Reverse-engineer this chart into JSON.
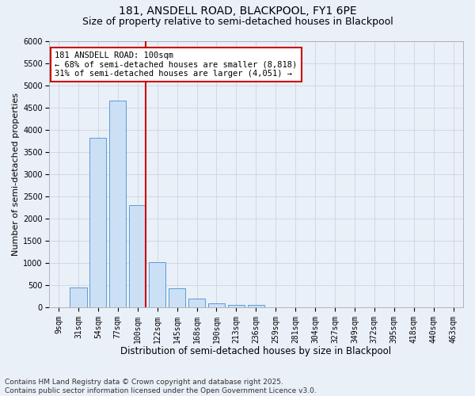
{
  "title1": "181, ANSDELL ROAD, BLACKPOOL, FY1 6PE",
  "title2": "Size of property relative to semi-detached houses in Blackpool",
  "xlabel": "Distribution of semi-detached houses by size in Blackpool",
  "ylabel": "Number of semi-detached properties",
  "categories": [
    "9sqm",
    "31sqm",
    "54sqm",
    "77sqm",
    "100sqm",
    "122sqm",
    "145sqm",
    "168sqm",
    "190sqm",
    "213sqm",
    "236sqm",
    "259sqm",
    "281sqm",
    "304sqm",
    "327sqm",
    "349sqm",
    "372sqm",
    "395sqm",
    "418sqm",
    "440sqm",
    "463sqm"
  ],
  "values": [
    0,
    450,
    3820,
    4660,
    2290,
    1010,
    420,
    195,
    80,
    55,
    55,
    0,
    0,
    0,
    0,
    0,
    0,
    0,
    0,
    0,
    0
  ],
  "bar_color": "#cce0f5",
  "bar_edge_color": "#5b9bd5",
  "highlight_bar_index": 4,
  "highlight_line_color": "#cc0000",
  "annotation_text": "181 ANSDELL ROAD: 100sqm\n← 68% of semi-detached houses are smaller (8,818)\n31% of semi-detached houses are larger (4,051) →",
  "annotation_box_color": "#ffffff",
  "annotation_box_edge_color": "#cc0000",
  "ylim": [
    0,
    6000
  ],
  "yticks": [
    0,
    500,
    1000,
    1500,
    2000,
    2500,
    3000,
    3500,
    4000,
    4500,
    5000,
    5500,
    6000
  ],
  "grid_color": "#d0d8e8",
  "bg_color": "#eaf0f8",
  "footnote": "Contains HM Land Registry data © Crown copyright and database right 2025.\nContains public sector information licensed under the Open Government Licence v3.0.",
  "title1_fontsize": 10,
  "title2_fontsize": 9,
  "xlabel_fontsize": 8.5,
  "ylabel_fontsize": 8,
  "tick_fontsize": 7,
  "annot_fontsize": 7.5,
  "footnote_fontsize": 6.5
}
